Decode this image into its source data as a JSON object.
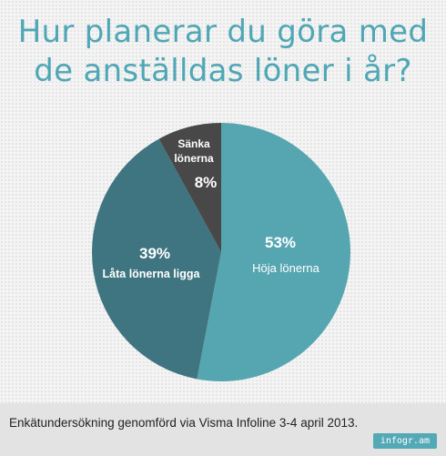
{
  "chart_data": {
    "type": "pie",
    "title": [
      "Hur planerar du göra med",
      "de anställdas löner i år?"
    ],
    "slices": [
      {
        "label": "Höja lönerna",
        "value": 53,
        "value_label": "53%",
        "color": "#56a6b2"
      },
      {
        "label": "Låta lönerna ligga",
        "value": 39,
        "value_label": "39%",
        "color": "#3f7580"
      },
      {
        "label": "Sänka lönerna",
        "label_lines": [
          "Sänka",
          "lönerna"
        ],
        "value": 8,
        "value_label": "8%",
        "color": "#484848"
      }
    ]
  },
  "footer": {
    "source": "Enkätundersökning genomförd via Visma Infoline 3-4 april 2013.",
    "brand": "infogr.am"
  }
}
